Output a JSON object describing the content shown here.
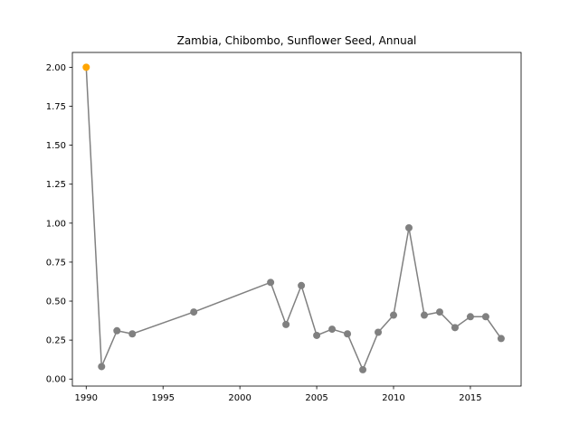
{
  "chart_data": {
    "type": "line",
    "title": "Zambia, Chibombo, Sunflower Seed, Annual",
    "xlabel": "",
    "ylabel": "",
    "xlim": [
      1989.1,
      2018.3
    ],
    "ylim": [
      -0.045,
      2.095
    ],
    "x_ticks": [
      1990,
      1995,
      2000,
      2005,
      2010,
      2015
    ],
    "y_ticks": [
      "0.00",
      "0.25",
      "0.50",
      "0.75",
      "1.00",
      "1.25",
      "1.50",
      "1.75",
      "2.00"
    ],
    "grid": false,
    "legend": "none",
    "line_color": "#808080",
    "highlight_color": "#FFA500",
    "highlight_index": 0,
    "series": [
      {
        "x": [
          1990,
          1991,
          1992,
          1993,
          1997,
          2002,
          2003,
          2004,
          2005,
          2006,
          2007,
          2008,
          2009,
          2010,
          2011,
          2012,
          2013,
          2014,
          2015,
          2016,
          2017
        ],
        "y": [
          2.0,
          0.08,
          0.31,
          0.29,
          0.43,
          0.62,
          0.35,
          0.6,
          0.28,
          0.32,
          0.29,
          0.06,
          0.3,
          0.41,
          0.97,
          0.41,
          0.43,
          0.33,
          0.4,
          0.4,
          0.26
        ]
      }
    ]
  }
}
